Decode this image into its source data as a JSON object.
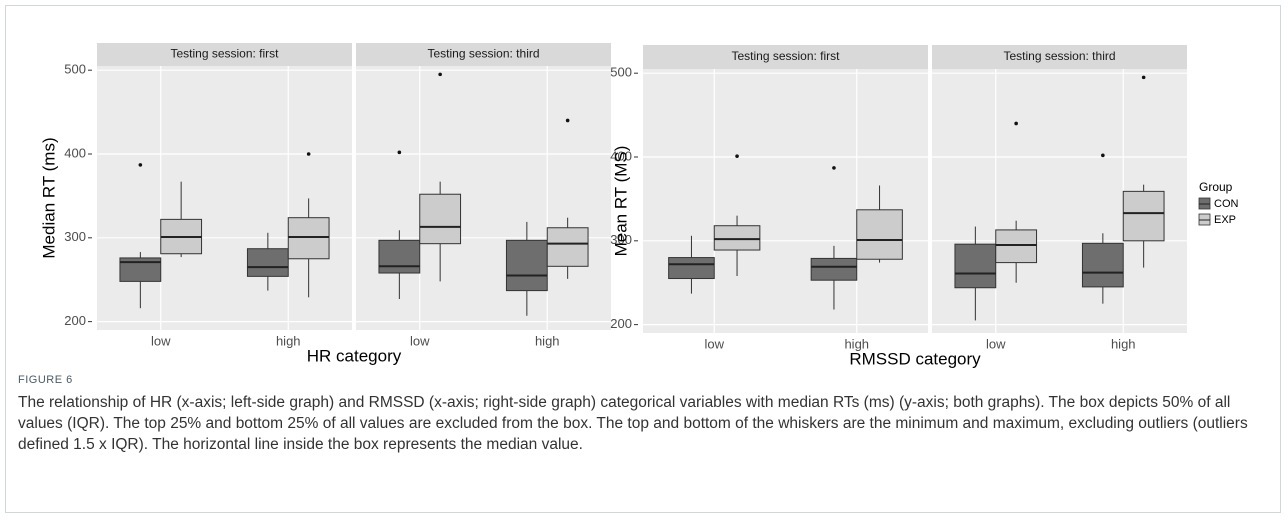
{
  "chart_data": [
    {
      "type": "box",
      "xlabel": "HR category",
      "ylabel": "Median RT (ms)",
      "facets": [
        "Testing session: first",
        "Testing session: third"
      ],
      "categories": [
        "low",
        "high"
      ],
      "ylim": [
        190,
        505
      ],
      "yticks": [
        200,
        300,
        400,
        500
      ],
      "grid": true,
      "legend": false,
      "series": [
        {
          "name": "CON",
          "color": "#6e6e6e",
          "values": [
            [
              {
                "min": 216,
                "q1": 248,
                "median": 271,
                "q3": 276,
                "max": 283,
                "outliers": [
                  387
                ]
              },
              {
                "min": 237,
                "q1": 254,
                "median": 265,
                "q3": 287,
                "max": 306,
                "outliers": []
              }
            ],
            [
              {
                "min": 227,
                "q1": 258,
                "median": 266,
                "q3": 297,
                "max": 309,
                "outliers": [
                  402
                ]
              },
              {
                "min": 207,
                "q1": 237,
                "median": 255,
                "q3": 297,
                "max": 319,
                "outliers": []
              }
            ]
          ]
        },
        {
          "name": "EXP",
          "color": "#cccccc",
          "values": [
            [
              {
                "min": 277,
                "q1": 281,
                "median": 301,
                "q3": 322,
                "max": 367,
                "outliers": []
              },
              {
                "min": 229,
                "q1": 275,
                "median": 301,
                "q3": 324,
                "max": 347,
                "outliers": [
                  400
                ]
              }
            ],
            [
              {
                "min": 248,
                "q1": 293,
                "median": 313,
                "q3": 352,
                "max": 367,
                "outliers": [
                  495
                ]
              },
              {
                "min": 251,
                "q1": 266,
                "median": 293,
                "q3": 312,
                "max": 324,
                "outliers": [
                  440
                ]
              }
            ]
          ]
        }
      ]
    },
    {
      "type": "box",
      "xlabel": "RMSSD category",
      "ylabel": "Mean RT (MS)",
      "facets": [
        "Testing session: first",
        "Testing session: third"
      ],
      "categories": [
        "low",
        "high"
      ],
      "ylim": [
        190,
        505
      ],
      "yticks": [
        200,
        300,
        400,
        500
      ],
      "grid": true,
      "legend": "right",
      "legend_title": "Group",
      "series": [
        {
          "name": "CON",
          "color": "#6e6e6e",
          "values": [
            [
              {
                "min": 237,
                "q1": 255,
                "median": 272,
                "q3": 280,
                "max": 306,
                "outliers": []
              },
              {
                "min": 218,
                "q1": 253,
                "median": 269,
                "q3": 279,
                "max": 294,
                "outliers": [
                  387
                ]
              }
            ],
            [
              {
                "min": 205,
                "q1": 244,
                "median": 261,
                "q3": 296,
                "max": 317,
                "outliers": []
              },
              {
                "min": 225,
                "q1": 245,
                "median": 262,
                "q3": 297,
                "max": 309,
                "outliers": [
                  402
                ]
              }
            ]
          ]
        },
        {
          "name": "EXP",
          "color": "#cccccc",
          "values": [
            [
              {
                "min": 258,
                "q1": 289,
                "median": 302,
                "q3": 318,
                "max": 330,
                "outliers": [
                  401
                ]
              },
              {
                "min": 274,
                "q1": 278,
                "median": 301,
                "q3": 337,
                "max": 366,
                "outliers": []
              }
            ],
            [
              {
                "min": 250,
                "q1": 274,
                "median": 295,
                "q3": 313,
                "max": 324,
                "outliers": [
                  440
                ]
              },
              {
                "min": 268,
                "q1": 300,
                "median": 333,
                "q3": 359,
                "max": 367,
                "outliers": [
                  495
                ]
              }
            ]
          ]
        }
      ]
    }
  ],
  "figure": {
    "label": "FIGURE 6",
    "caption": "The relationship of HR (x-axis; left-side graph) and RMSSD (x-axis; right-side graph) categorical variables with median RTs (ms) (y-axis; both graphs). The box depicts 50% of all values (IQR). The top 25% and bottom 25% of all values are excluded from the box. The top and bottom of the whiskers are the minimum and maximum, excluding outliers (outliers defined 1.5 x IQR). The horizontal line inside the box represents the median value."
  }
}
